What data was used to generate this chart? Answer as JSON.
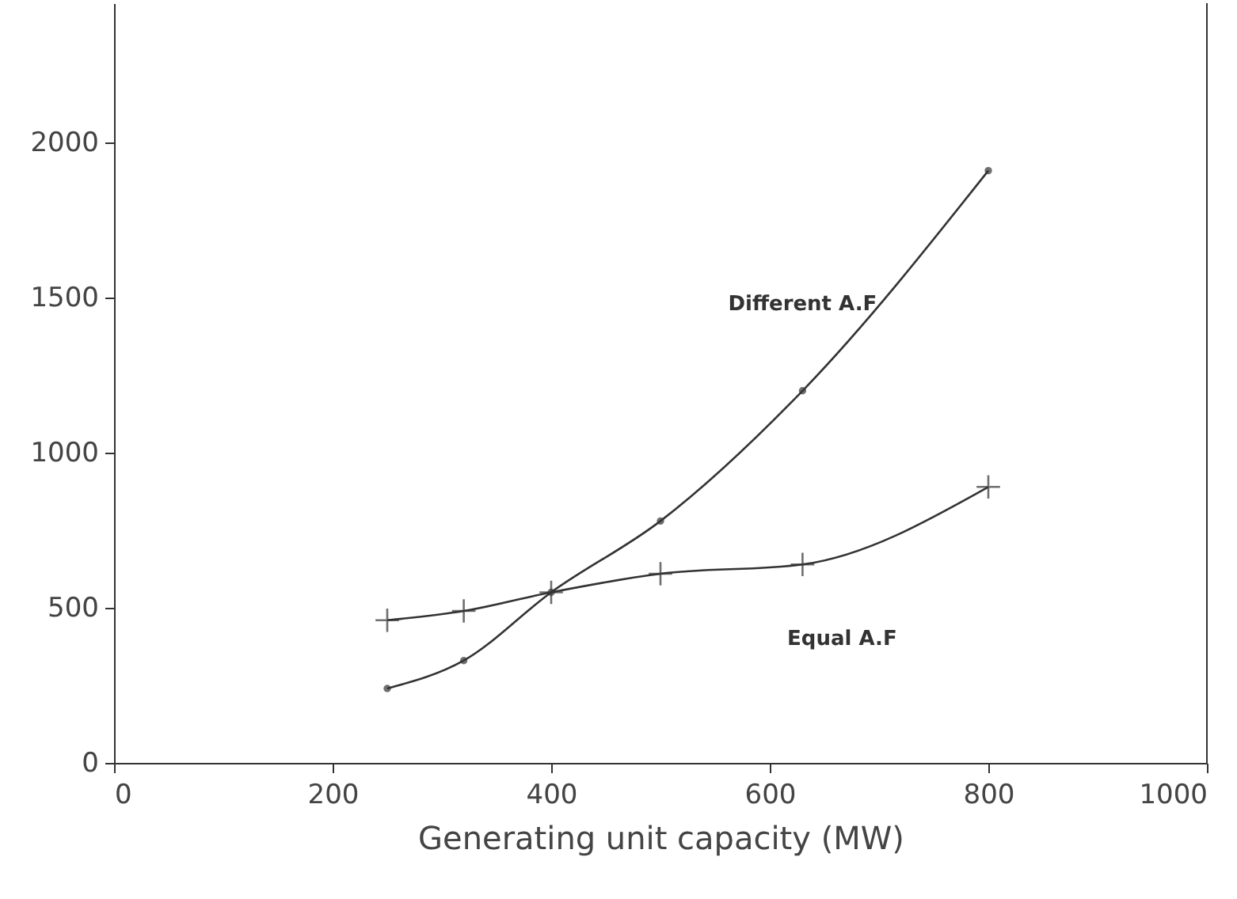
{
  "chart_data": {
    "type": "line",
    "xlabel": "Generating unit capacity (MW)",
    "x": [
      250,
      320,
      400,
      500,
      630,
      800
    ],
    "series": [
      {
        "name": "Different A.F",
        "color": "#333333",
        "marker": "circle",
        "values": [
          240,
          330,
          550,
          780,
          1200,
          1910
        ]
      },
      {
        "name": "Equal A.F",
        "color": "#333333",
        "marker": "cross",
        "values": [
          460,
          490,
          550,
          610,
          640,
          890
        ]
      }
    ],
    "xlim": [
      0,
      1000
    ],
    "xticks": [
      0,
      200,
      400,
      600,
      800,
      1000
    ],
    "ylim": [
      0,
      2450
    ],
    "yticks": [
      0,
      500,
      1000,
      1500,
      2000
    ],
    "grid": false,
    "line_style": "solid"
  }
}
